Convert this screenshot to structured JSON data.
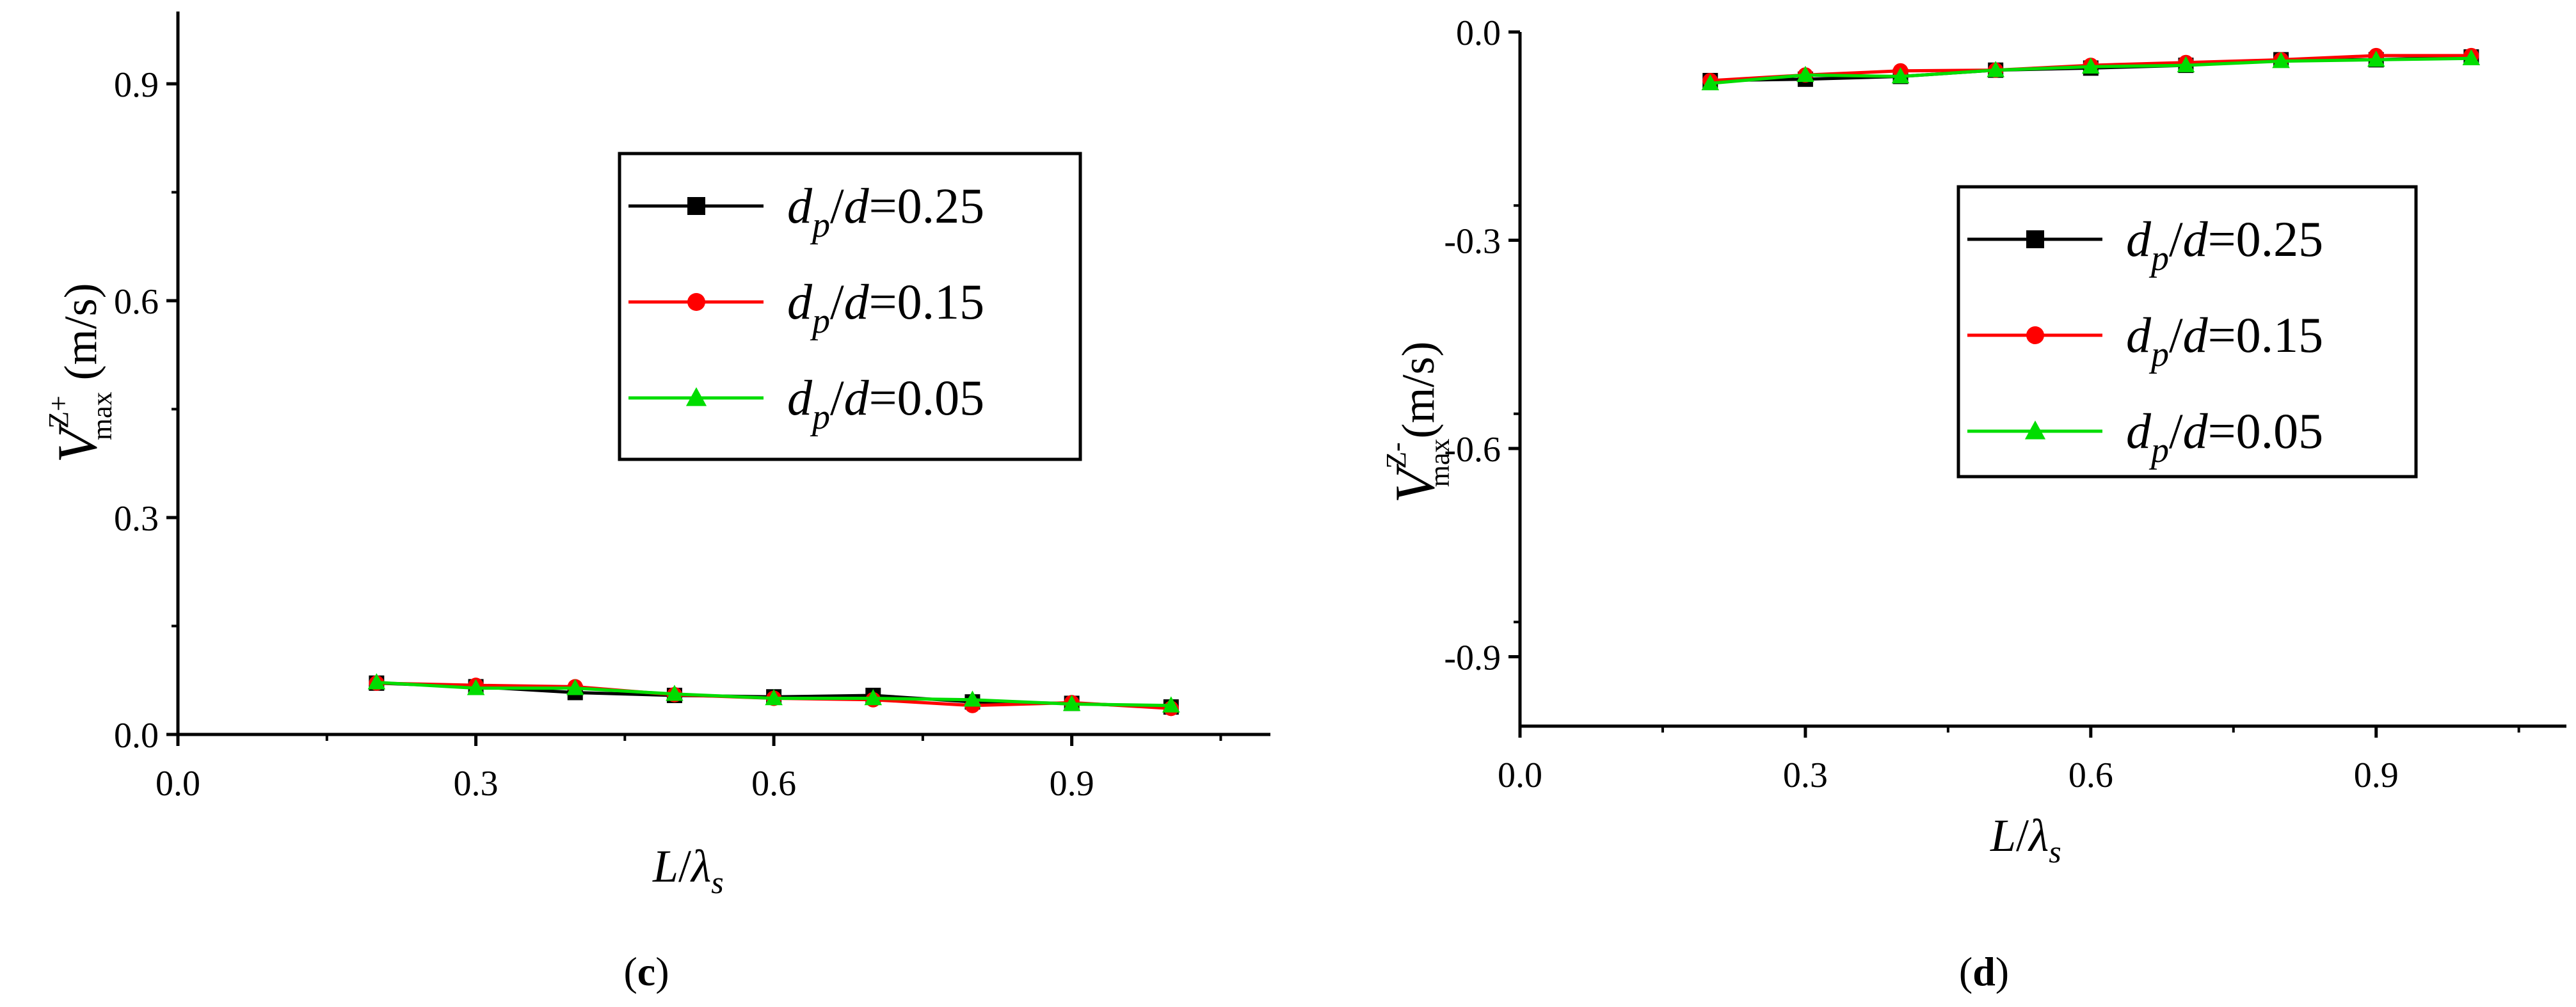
{
  "chart_data": [
    {
      "type": "line",
      "panel_label": "c",
      "ylabel": {
        "main": "V",
        "sup": "Z+",
        "sub": "max",
        "unit": " (m/s)"
      },
      "xlabel": {
        "main": "L",
        "slash": "/",
        "lambda": "λ",
        "sub": "s"
      },
      "xlim": [
        0.0,
        1.1
      ],
      "ylim": [
        0.0,
        1.0
      ],
      "xticks": [
        "0.0",
        "0.3",
        "0.6",
        "0.9"
      ],
      "yticks": [
        "0.0",
        "0.3",
        "0.6",
        "0.9"
      ],
      "x": [
        0.2,
        0.3,
        0.4,
        0.5,
        0.6,
        0.7,
        0.8,
        0.9,
        1.0
      ],
      "legend_position": "upper-right",
      "series": [
        {
          "name": {
            "a": "d",
            "asub": "p",
            "b": "/",
            "c": "d",
            "d": "=0.25"
          },
          "color": "#000000",
          "marker": "square",
          "values": [
            0.071,
            0.066,
            0.058,
            0.054,
            0.052,
            0.054,
            0.045,
            0.043,
            0.038
          ]
        },
        {
          "name": {
            "a": "d",
            "asub": "p",
            "b": "/",
            "c": "d",
            "d": "=0.15"
          },
          "color": "#ff0000",
          "marker": "circle",
          "values": [
            0.071,
            0.068,
            0.066,
            0.055,
            0.05,
            0.048,
            0.04,
            0.044,
            0.036
          ]
        },
        {
          "name": {
            "a": "d",
            "asub": "p",
            "b": "/",
            "c": "d",
            "d": "=0.05"
          },
          "color": "#00dd00",
          "marker": "triangle",
          "values": [
            0.072,
            0.064,
            0.064,
            0.056,
            0.05,
            0.05,
            0.048,
            0.042,
            0.04
          ]
        }
      ]
    },
    {
      "type": "line",
      "panel_label": "d",
      "ylabel": {
        "main": "V",
        "sup": "Z-",
        "sub": "max",
        "unit": "(m/s)"
      },
      "xlabel": {
        "main": "L",
        "slash": "/",
        "lambda": "λ",
        "sub": "s"
      },
      "xlim": [
        0.0,
        1.1
      ],
      "ylim": [
        -1.0,
        0.0
      ],
      "xticks": [
        "0.0",
        "0.3",
        "0.6",
        "0.9"
      ],
      "yticks": [
        "0.0",
        "-0.3",
        "-0.6",
        "-0.9"
      ],
      "x": [
        0.2,
        0.3,
        0.4,
        0.5,
        0.6,
        0.7,
        0.8,
        0.9,
        1.0
      ],
      "legend_position": "upper-right",
      "series": [
        {
          "name": {
            "a": "d",
            "asub": "p",
            "b": "/",
            "c": "d",
            "d": "=0.25"
          },
          "color": "#000000",
          "marker": "square",
          "values": [
            -0.07,
            -0.068,
            -0.064,
            -0.055,
            -0.052,
            -0.048,
            -0.04,
            -0.04,
            -0.036
          ]
        },
        {
          "name": {
            "a": "d",
            "asub": "p",
            "b": "/",
            "c": "d",
            "d": "=0.15"
          },
          "color": "#ff0000",
          "marker": "circle",
          "values": [
            -0.07,
            -0.062,
            -0.056,
            -0.055,
            -0.048,
            -0.044,
            -0.04,
            -0.034,
            -0.034
          ]
        },
        {
          "name": {
            "a": "d",
            "asub": "p",
            "b": "/",
            "c": "d",
            "d": "=0.05"
          },
          "color": "#00dd00",
          "marker": "triangle",
          "values": [
            -0.074,
            -0.062,
            -0.064,
            -0.055,
            -0.05,
            -0.048,
            -0.042,
            -0.04,
            -0.038
          ]
        }
      ]
    }
  ]
}
